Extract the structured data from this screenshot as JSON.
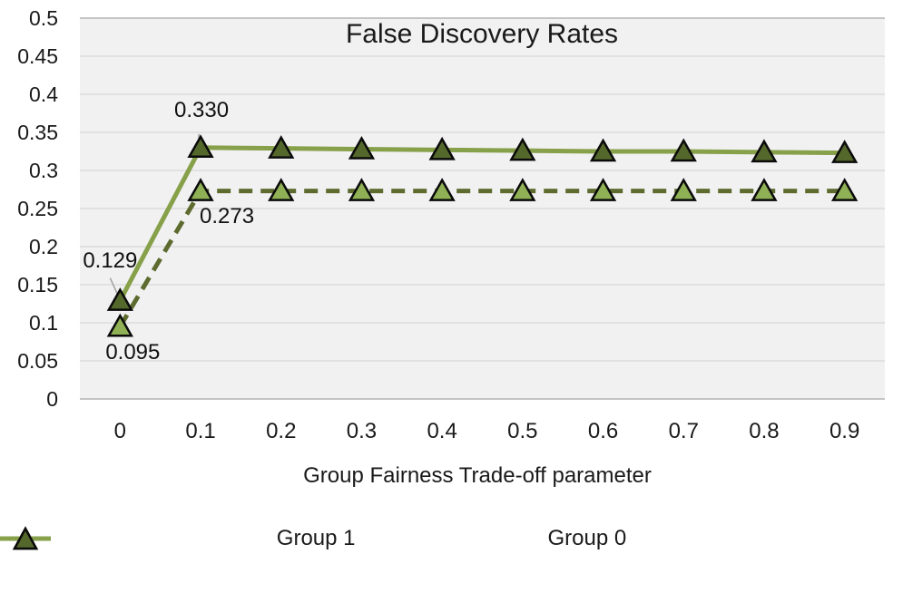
{
  "chart_data": {
    "type": "line",
    "title": "False Discovery Rates",
    "xlabel": "Group Fairness Trade-off parameter",
    "ylabel": "",
    "x_tick_labels": [
      "0",
      "0.1",
      "0.2",
      "0.3",
      "0.4",
      "0.5",
      "0.6",
      "0.7",
      "0.8",
      "0.9"
    ],
    "y_tick_labels": [
      "0",
      "0.05",
      "0.1",
      "0.15",
      "0.2",
      "0.25",
      "0.3",
      "0.35",
      "0.4",
      "0.45",
      "0.5"
    ],
    "ylim": [
      0,
      0.5
    ],
    "y_tick_step": 0.05,
    "grid": true,
    "legend_position": "bottom",
    "series": [
      {
        "name": "Group 1",
        "line_style": "dashed",
        "line_color": "#5d6b2f",
        "marker": "triangle",
        "marker_color": "#8fb054",
        "values": [
          0.095,
          0.273,
          0.273,
          0.273,
          0.273,
          0.273,
          0.273,
          0.273,
          0.273,
          0.273
        ]
      },
      {
        "name": "Group 0",
        "line_style": "solid",
        "line_color": "#87a04a",
        "marker": "triangle",
        "marker_color": "#55682c",
        "values": [
          0.129,
          0.33,
          0.329,
          0.328,
          0.327,
          0.326,
          0.325,
          0.325,
          0.324,
          0.323
        ]
      }
    ],
    "data_labels": [
      {
        "series": "Group 0",
        "point_index": 1,
        "text": "0.330"
      },
      {
        "series": "Group 1",
        "point_index": 1,
        "text": "0.273"
      },
      {
        "series": "Group 0",
        "point_index": 0,
        "text": "0.129"
      },
      {
        "series": "Group 1",
        "point_index": 0,
        "text": "0.095"
      }
    ]
  },
  "colors": {
    "plot_background": "#f1f1f1",
    "gridline": "#dcdcdc",
    "axis_boundary_line": "#c4c4c4",
    "text": "#1a1a1a",
    "leader_line": "#a6a6a6",
    "marker_stroke": "#0a0a0a"
  }
}
